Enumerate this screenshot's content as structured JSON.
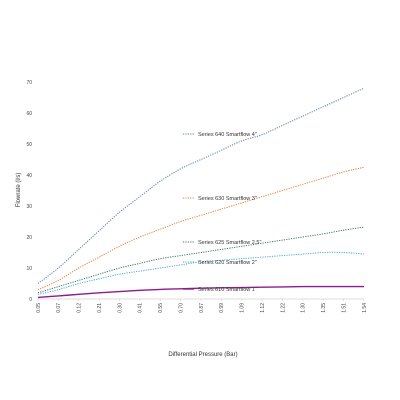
{
  "chart_data": {
    "type": "line",
    "title": "",
    "xlabel": "Differential Pressure (Bar)",
    "ylabel": "Flowrate (l/s)",
    "x": [
      0.05,
      0.07,
      0.12,
      0.21,
      0.3,
      0.41,
      0.55,
      0.7,
      0.87,
      0.99,
      1.09,
      1.12,
      1.22,
      1.3,
      1.35,
      1.51,
      1.54
    ],
    "x_tick_labels": [
      "0.05",
      "0.07",
      "0.12",
      "0.21",
      "0.30",
      "0.41",
      "0.55",
      "0.70",
      "0.87",
      "0.99",
      "1.09",
      "1.12",
      "1.22",
      "1.30",
      "1.35",
      "1.51",
      "1.54"
    ],
    "ylim": [
      0,
      70
    ],
    "y_ticks": [
      0,
      10,
      20,
      30,
      40,
      50,
      60,
      70
    ],
    "grid": false,
    "series": [
      {
        "name": "Series 640 Smartflow 4\"",
        "color": "#5b7bb4",
        "dash": "dotted",
        "values": [
          5,
          10,
          16,
          22,
          28,
          33,
          38,
          42,
          45,
          48,
          51,
          53,
          56,
          59,
          62,
          65,
          68
        ]
      },
      {
        "name": "Series 630 Smartflow 3\"",
        "color": "#ed7d31",
        "dash": "dotted",
        "values": [
          3,
          6,
          10,
          13.5,
          17,
          20,
          22.5,
          25,
          27,
          29,
          31,
          33,
          35,
          37,
          39,
          41,
          42.5
        ]
      },
      {
        "name": "Series 625 Smartflow 2.5\"",
        "color": "#3b7a5a",
        "dash": "dotted",
        "values": [
          2,
          4,
          6,
          8,
          10,
          11.5,
          13,
          14,
          15,
          16,
          17,
          18,
          19,
          20,
          21,
          22.2,
          23.2
        ]
      },
      {
        "name": "Series 620 Smartflow 2\"",
        "color": "#4aa8d8",
        "dash": "dotted",
        "values": [
          1.5,
          3,
          5,
          6.5,
          8,
          9,
          10,
          11,
          12,
          12.5,
          13,
          13.5,
          14,
          14.5,
          15,
          15,
          14.5
        ]
      },
      {
        "name": "Series 610 Smartflow 1\"",
        "color": "#8e1b8e",
        "dash": "solid",
        "values": [
          0.5,
          1,
          1.5,
          2,
          2.4,
          2.8,
          3.1,
          3.3,
          3.5,
          3.6,
          3.7,
          3.8,
          3.9,
          4,
          4,
          4,
          4
        ]
      }
    ],
    "legend": [
      {
        "label": "Series 640 Smartflow 4\"",
        "series": 0
      },
      {
        "label": "Series 630 Smartflow 3\"",
        "series": 1
      },
      {
        "label": "Series 625 Smartflow 2.5\"",
        "series": 2
      },
      {
        "label": "Series 620 Smartflow 2\"",
        "series": 3
      },
      {
        "label": "Series 610 Smartflow 1\"",
        "series": 4
      }
    ],
    "legend_placement": "inline-labels-inside-plot"
  }
}
